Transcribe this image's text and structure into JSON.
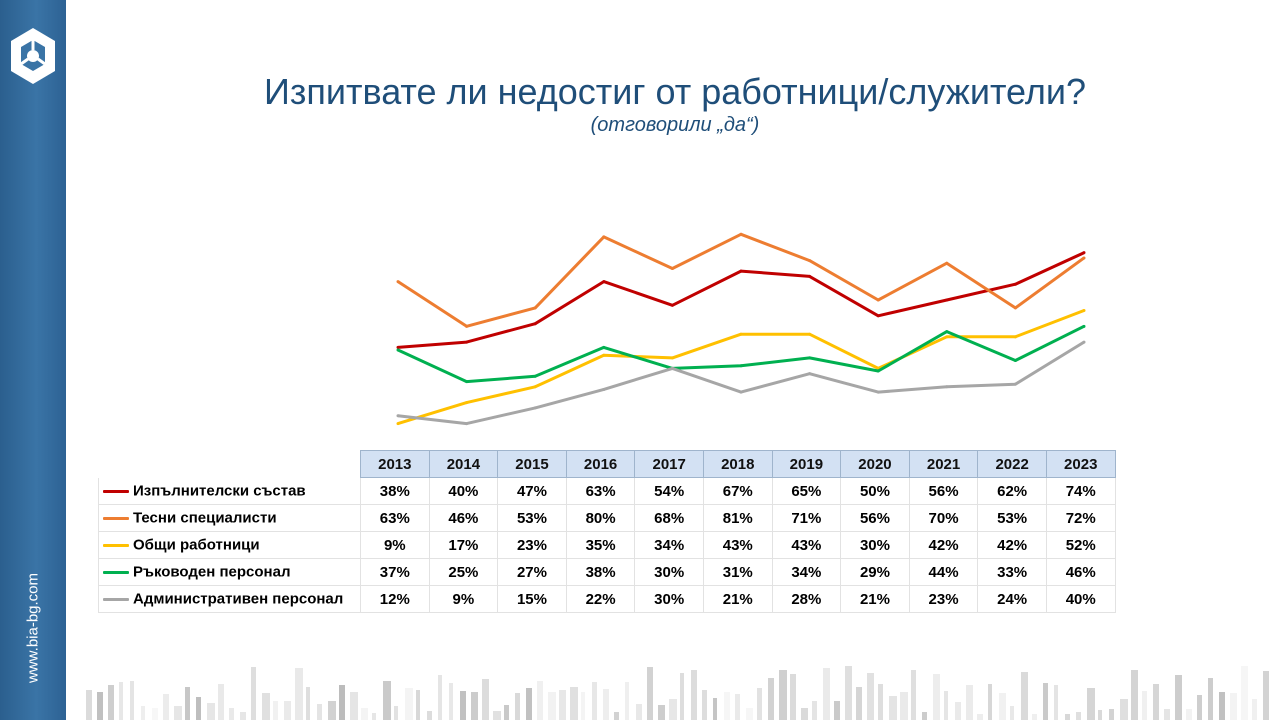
{
  "sidebar": {
    "url": "www.bia-bg.com"
  },
  "header": {
    "title": "Изпитвате ли недостиг от работници/служители?",
    "subtitle": "(отговорили „да“)"
  },
  "chart_data": {
    "type": "line",
    "title": "Изпитвате ли недостиг от работници/служители?",
    "subtitle": "(отговорили „да“)",
    "categories": [
      "2013",
      "2014",
      "2015",
      "2016",
      "2017",
      "2018",
      "2019",
      "2020",
      "2021",
      "2022",
      "2023"
    ],
    "ylim": [
      0,
      100
    ],
    "grid": false,
    "series": [
      {
        "name": "Изпълнителски състав",
        "color": "#c00000",
        "values": [
          38,
          40,
          47,
          63,
          54,
          67,
          65,
          50,
          56,
          62,
          74
        ],
        "labels": [
          "38%",
          "40%",
          "47%",
          "63%",
          "54%",
          "67%",
          "65%",
          "50%",
          "56%",
          "62%",
          "74%"
        ]
      },
      {
        "name": "Тесни специалисти",
        "color": "#ed7d31",
        "values": [
          63,
          46,
          53,
          80,
          68,
          81,
          71,
          56,
          70,
          53,
          72
        ],
        "labels": [
          "63%",
          "46%",
          "53%",
          "80%",
          "68%",
          "81%",
          "71%",
          "56%",
          "70%",
          "53%",
          "72%"
        ]
      },
      {
        "name": "Общи работници",
        "color": "#ffc000",
        "values": [
          9,
          17,
          23,
          35,
          34,
          43,
          43,
          30,
          42,
          42,
          52
        ],
        "labels": [
          "9%",
          "17%",
          "23%",
          "35%",
          "34%",
          "43%",
          "43%",
          "30%",
          "42%",
          "42%",
          "52%"
        ]
      },
      {
        "name": "Ръководен персонал",
        "color": "#00b050",
        "values": [
          37,
          25,
          27,
          38,
          30,
          31,
          34,
          29,
          44,
          33,
          46
        ],
        "labels": [
          "37%",
          "25%",
          "27%",
          "38%",
          "30%",
          "31%",
          "34%",
          "29%",
          "44%",
          "33%",
          "46%"
        ]
      },
      {
        "name": "Административен персонал",
        "color": "#a6a6a6",
        "values": [
          12,
          9,
          15,
          22,
          30,
          21,
          28,
          21,
          23,
          24,
          40
        ],
        "labels": [
          "12%",
          "9%",
          "15%",
          "22%",
          "30%",
          "21%",
          "28%",
          "21%",
          "23%",
          "24%",
          "40%"
        ]
      }
    ]
  }
}
